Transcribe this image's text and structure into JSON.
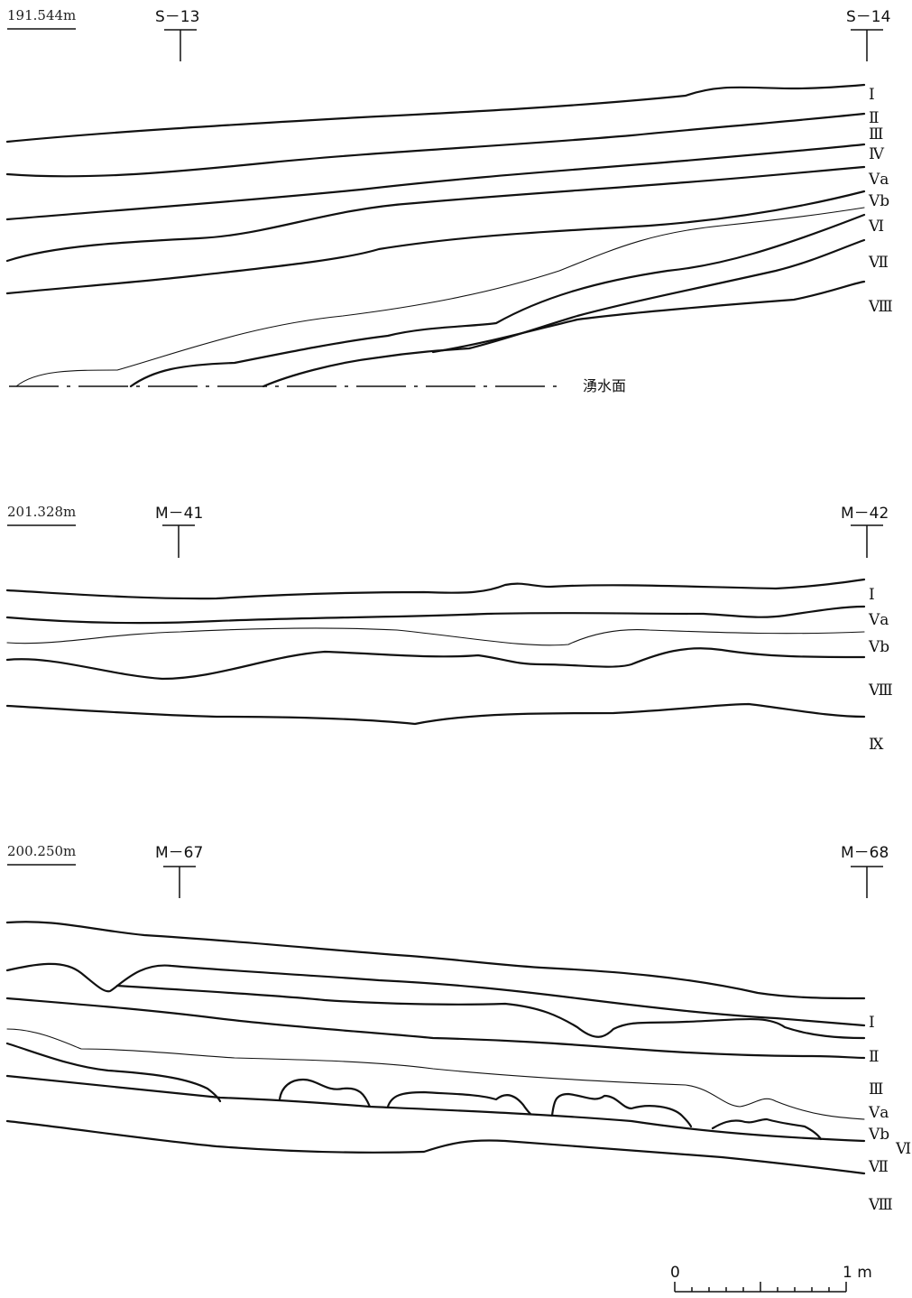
{
  "sections": [
    {
      "id": "s13-s14",
      "elevation": "191.544m",
      "stakes": [
        "S－13",
        "S－14"
      ],
      "layers": [
        "Ⅰ",
        "Ⅱ",
        "Ⅲ",
        "Ⅳ",
        "Ⅴa",
        "Ⅴb",
        "Ⅵ",
        "Ⅶ",
        "Ⅷ"
      ],
      "water_level_label": "湧水面"
    },
    {
      "id": "m41-m42",
      "elevation": "201.328m",
      "stakes": [
        "M－41",
        "M－42"
      ],
      "layers": [
        "Ⅰ",
        "Ⅴa",
        "Ⅴb",
        "Ⅷ",
        "Ⅸ"
      ]
    },
    {
      "id": "m67-m68",
      "elevation": "200.250m",
      "stakes": [
        "M－67",
        "M－68"
      ],
      "layers": [
        "Ⅰ",
        "Ⅱ",
        "Ⅲ",
        "Ⅴa",
        "Ⅴb",
        "Ⅵ",
        "Ⅶ",
        "Ⅷ"
      ]
    }
  ],
  "scale_bar": {
    "start": "0",
    "end": "1 m"
  },
  "colors": {
    "ink": "#111111",
    "paper": "#ffffff"
  }
}
